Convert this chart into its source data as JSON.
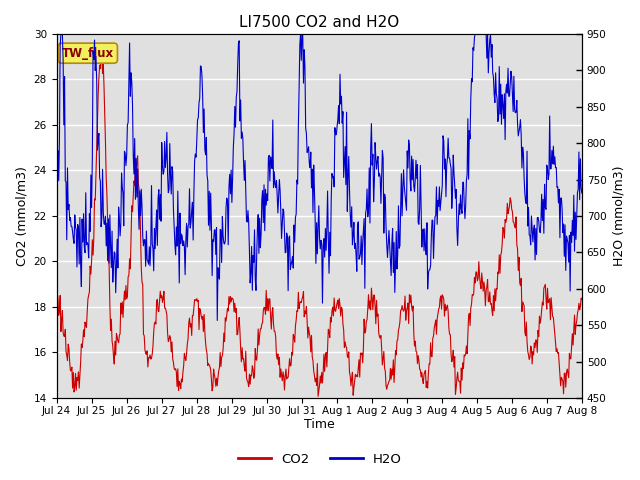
{
  "title": "LI7500 CO2 and H2O",
  "xlabel": "Time",
  "ylabel_left": "CO2 (mmol/m3)",
  "ylabel_right": "H2O (mmol/m3)",
  "ylim_left": [
    14,
    30
  ],
  "ylim_right": [
    450,
    950
  ],
  "background_color": "#e0e0e0",
  "fig_background": "#ffffff",
  "annotation": "TW_flux",
  "legend_labels": [
    "CO2",
    "H2O"
  ],
  "legend_colors": [
    "#cc0000",
    "#0000cc"
  ],
  "xtick_labels": [
    "Jul 24",
    "Jul 25",
    "Jul 26",
    "Jul 27",
    "Jul 28",
    "Jul 29",
    "Jul 30",
    "Jul 31",
    "Aug 1",
    "Aug 2",
    "Aug 3",
    "Aug 4",
    "Aug 5",
    "Aug 6",
    "Aug 7",
    "Aug 8"
  ],
  "n_points": 720,
  "title_fontsize": 11,
  "tick_fontsize": 7.5,
  "label_fontsize": 9
}
